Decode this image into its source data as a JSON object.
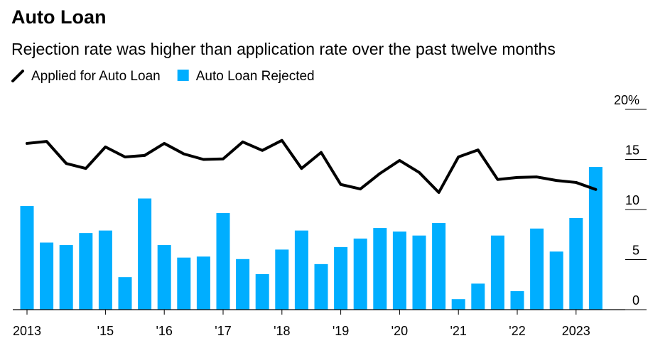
{
  "chart_data": {
    "type": "bar_line",
    "title": "Auto Loan",
    "subtitle": "Rejection rate was higher than application rate over the past twelve months",
    "categories": [
      "2013",
      null,
      null,
      null,
      "'15",
      null,
      null,
      "'16",
      null,
      null,
      "'17",
      null,
      null,
      "'18",
      null,
      null,
      "'19",
      null,
      null,
      "'20",
      null,
      null,
      "'21",
      null,
      null,
      "'22",
      null,
      null,
      "2023",
      null
    ],
    "series": [
      {
        "name": "Applied for Auto Loan",
        "kind": "line",
        "color": "#000000",
        "values": [
          16.6,
          16.8,
          14.6,
          14.1,
          16.25,
          15.25,
          15.4,
          16.6,
          15.55,
          15.0,
          15.05,
          16.75,
          15.9,
          16.9,
          14.1,
          15.7,
          12.5,
          12.05,
          13.6,
          14.9,
          13.7,
          11.7,
          15.25,
          15.95,
          13.0,
          13.2,
          13.25,
          12.9,
          12.7,
          12.0
        ]
      },
      {
        "name": "Auto Loan Rejected",
        "kind": "bar",
        "color": "#00aeff",
        "values": [
          10.35,
          6.7,
          6.45,
          7.65,
          7.9,
          3.25,
          11.1,
          6.45,
          5.2,
          5.3,
          9.65,
          5.05,
          3.55,
          6.0,
          7.9,
          4.55,
          6.25,
          7.1,
          8.15,
          7.8,
          7.4,
          8.65,
          1.05,
          2.6,
          7.4,
          1.85,
          8.1,
          5.8,
          9.15,
          14.25
        ]
      }
    ],
    "ylim": [
      0,
      20
    ],
    "yticks": [
      0,
      5,
      10,
      15,
      {
        "value": 20,
        "label": "20%"
      }
    ],
    "y_axis_side": "right"
  }
}
